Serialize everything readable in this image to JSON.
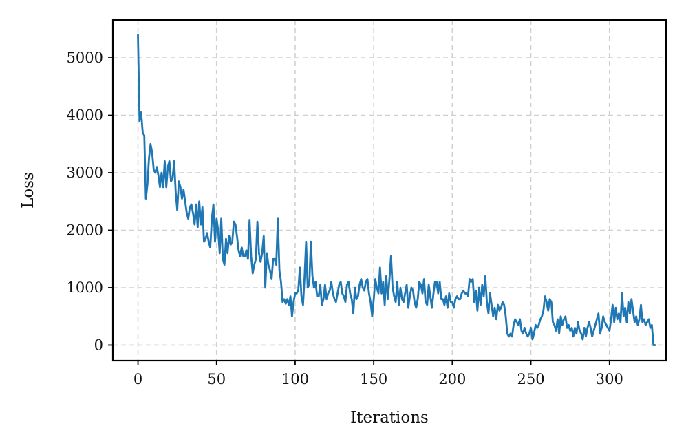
{
  "chart_data": {
    "type": "line",
    "title": "",
    "xlabel": "Iterations",
    "ylabel": "Loss",
    "xlim": [
      -16,
      336
    ],
    "ylim": [
      -270,
      5660
    ],
    "x_ticks": [
      0,
      50,
      100,
      150,
      200,
      250,
      300
    ],
    "y_ticks": [
      0,
      1000,
      2000,
      3000,
      4000,
      5000
    ],
    "x_tick_labels": [
      "0",
      "50",
      "100",
      "150",
      "200",
      "250",
      "300"
    ],
    "y_tick_labels": [
      "0",
      "1000",
      "2000",
      "3000",
      "4000",
      "5000"
    ],
    "grid": true,
    "legend": "none",
    "series": [
      {
        "color": "#1f77b4",
        "points": [
          [
            0,
            5400
          ],
          [
            1,
            3900
          ],
          [
            2,
            4050
          ],
          [
            3,
            3700
          ],
          [
            4,
            3650
          ],
          [
            5,
            2550
          ],
          [
            6,
            2800
          ],
          [
            7,
            3250
          ],
          [
            8,
            3500
          ],
          [
            9,
            3350
          ],
          [
            10,
            3050
          ],
          [
            11,
            3000
          ],
          [
            12,
            3100
          ],
          [
            13,
            2950
          ],
          [
            14,
            2750
          ],
          [
            15,
            3000
          ],
          [
            16,
            2750
          ],
          [
            17,
            3200
          ],
          [
            18,
            2750
          ],
          [
            19,
            3100
          ],
          [
            20,
            3200
          ],
          [
            21,
            2850
          ],
          [
            22,
            2900
          ],
          [
            23,
            3200
          ],
          [
            24,
            2650
          ],
          [
            25,
            2350
          ],
          [
            26,
            2850
          ],
          [
            27,
            2750
          ],
          [
            28,
            2550
          ],
          [
            29,
            2700
          ],
          [
            30,
            2500
          ],
          [
            31,
            2300
          ],
          [
            32,
            2200
          ],
          [
            33,
            2400
          ],
          [
            34,
            2450
          ],
          [
            35,
            2300
          ],
          [
            36,
            2100
          ],
          [
            37,
            2450
          ],
          [
            38,
            2050
          ],
          [
            39,
            2500
          ],
          [
            40,
            2100
          ],
          [
            41,
            2400
          ],
          [
            42,
            1800
          ],
          [
            43,
            1850
          ],
          [
            44,
            1950
          ],
          [
            45,
            1800
          ],
          [
            46,
            1700
          ],
          [
            47,
            2200
          ],
          [
            48,
            2450
          ],
          [
            49,
            1800
          ],
          [
            50,
            2200
          ],
          [
            51,
            2000
          ],
          [
            52,
            1600
          ],
          [
            53,
            2200
          ],
          [
            54,
            1500
          ],
          [
            55,
            1400
          ],
          [
            56,
            1850
          ],
          [
            57,
            1600
          ],
          [
            58,
            1900
          ],
          [
            59,
            1750
          ],
          [
            60,
            1800
          ],
          [
            61,
            2150
          ],
          [
            62,
            2100
          ],
          [
            63,
            1900
          ],
          [
            64,
            1650
          ],
          [
            65,
            1550
          ],
          [
            66,
            1700
          ],
          [
            67,
            1550
          ],
          [
            68,
            1550
          ],
          [
            69,
            1650
          ],
          [
            70,
            1500
          ],
          [
            71,
            2180
          ],
          [
            72,
            1550
          ],
          [
            73,
            1250
          ],
          [
            74,
            1400
          ],
          [
            75,
            1500
          ],
          [
            76,
            2150
          ],
          [
            77,
            1600
          ],
          [
            78,
            1450
          ],
          [
            79,
            1600
          ],
          [
            80,
            1900
          ],
          [
            81,
            1000
          ],
          [
            82,
            1600
          ],
          [
            83,
            1400
          ],
          [
            84,
            1300
          ],
          [
            85,
            1150
          ],
          [
            86,
            1500
          ],
          [
            87,
            1500
          ],
          [
            88,
            1400
          ],
          [
            89,
            2200
          ],
          [
            90,
            1300
          ],
          [
            91,
            1100
          ],
          [
            92,
            750
          ],
          [
            93,
            800
          ],
          [
            94,
            720
          ],
          [
            95,
            800
          ],
          [
            96,
            700
          ],
          [
            97,
            850
          ],
          [
            98,
            500
          ],
          [
            99,
            750
          ],
          [
            100,
            900
          ],
          [
            101,
            900
          ],
          [
            102,
            950
          ],
          [
            103,
            1350
          ],
          [
            104,
            850
          ],
          [
            105,
            700
          ],
          [
            106,
            1200
          ],
          [
            107,
            1800
          ],
          [
            108,
            1000
          ],
          [
            109,
            1050
          ],
          [
            110,
            1800
          ],
          [
            111,
            1200
          ],
          [
            112,
            1000
          ],
          [
            113,
            1100
          ],
          [
            114,
            850
          ],
          [
            115,
            850
          ],
          [
            116,
            1050
          ],
          [
            117,
            700
          ],
          [
            118,
            800
          ],
          [
            119,
            1050
          ],
          [
            120,
            800
          ],
          [
            121,
            900
          ],
          [
            122,
            950
          ],
          [
            123,
            1100
          ],
          [
            124,
            900
          ],
          [
            125,
            800
          ],
          [
            126,
            750
          ],
          [
            127,
            900
          ],
          [
            128,
            1050
          ],
          [
            129,
            1100
          ],
          [
            130,
            900
          ],
          [
            131,
            850
          ],
          [
            132,
            750
          ],
          [
            133,
            1050
          ],
          [
            134,
            1100
          ],
          [
            135,
            900
          ],
          [
            136,
            800
          ],
          [
            137,
            550
          ],
          [
            138,
            1000
          ],
          [
            139,
            800
          ],
          [
            140,
            850
          ],
          [
            141,
            1050
          ],
          [
            142,
            1150
          ],
          [
            143,
            1000
          ],
          [
            144,
            950
          ],
          [
            145,
            1100
          ],
          [
            146,
            1150
          ],
          [
            147,
            900
          ],
          [
            148,
            750
          ],
          [
            149,
            500
          ],
          [
            150,
            800
          ],
          [
            151,
            1150
          ],
          [
            152,
            1000
          ],
          [
            153,
            900
          ],
          [
            154,
            1350
          ],
          [
            155,
            900
          ],
          [
            156,
            1100
          ],
          [
            157,
            700
          ],
          [
            158,
            1200
          ],
          [
            159,
            800
          ],
          [
            160,
            1150
          ],
          [
            161,
            1550
          ],
          [
            162,
            1000
          ],
          [
            163,
            850
          ],
          [
            164,
            750
          ],
          [
            165,
            1100
          ],
          [
            166,
            700
          ],
          [
            167,
            1000
          ],
          [
            168,
            800
          ],
          [
            169,
            750
          ],
          [
            170,
            900
          ],
          [
            171,
            1050
          ],
          [
            172,
            650
          ],
          [
            173,
            850
          ],
          [
            174,
            1000
          ],
          [
            175,
            950
          ],
          [
            176,
            750
          ],
          [
            177,
            650
          ],
          [
            178,
            800
          ],
          [
            179,
            1100
          ],
          [
            180,
            1050
          ],
          [
            181,
            900
          ],
          [
            182,
            1150
          ],
          [
            183,
            750
          ],
          [
            184,
            700
          ],
          [
            185,
            1050
          ],
          [
            186,
            850
          ],
          [
            187,
            650
          ],
          [
            188,
            900
          ],
          [
            189,
            1100
          ],
          [
            190,
            1100
          ],
          [
            191,
            900
          ],
          [
            192,
            1100
          ],
          [
            193,
            800
          ],
          [
            194,
            800
          ],
          [
            195,
            700
          ],
          [
            196,
            850
          ],
          [
            197,
            650
          ],
          [
            198,
            900
          ],
          [
            199,
            750
          ],
          [
            200,
            750
          ],
          [
            201,
            650
          ],
          [
            202,
            800
          ],
          [
            203,
            850
          ],
          [
            204,
            800
          ],
          [
            205,
            800
          ],
          [
            206,
            900
          ],
          [
            207,
            950
          ],
          [
            208,
            900
          ],
          [
            209,
            900
          ],
          [
            210,
            850
          ],
          [
            211,
            1150
          ],
          [
            212,
            1100
          ],
          [
            213,
            1150
          ],
          [
            214,
            750
          ],
          [
            215,
            950
          ],
          [
            216,
            600
          ],
          [
            217,
            1000
          ],
          [
            218,
            700
          ],
          [
            219,
            1050
          ],
          [
            220,
            850
          ],
          [
            221,
            1200
          ],
          [
            222,
            750
          ],
          [
            223,
            550
          ],
          [
            224,
            900
          ],
          [
            225,
            700
          ],
          [
            226,
            500
          ],
          [
            227,
            650
          ],
          [
            228,
            450
          ],
          [
            229,
            700
          ],
          [
            230,
            600
          ],
          [
            231,
            650
          ],
          [
            232,
            750
          ],
          [
            233,
            700
          ],
          [
            234,
            500
          ],
          [
            235,
            200
          ],
          [
            236,
            150
          ],
          [
            237,
            200
          ],
          [
            238,
            150
          ],
          [
            239,
            350
          ],
          [
            240,
            450
          ],
          [
            241,
            400
          ],
          [
            242,
            350
          ],
          [
            243,
            450
          ],
          [
            244,
            250
          ],
          [
            245,
            200
          ],
          [
            246,
            300
          ],
          [
            247,
            200
          ],
          [
            248,
            150
          ],
          [
            249,
            200
          ],
          [
            250,
            300
          ],
          [
            251,
            100
          ],
          [
            252,
            200
          ],
          [
            253,
            350
          ],
          [
            254,
            300
          ],
          [
            255,
            350
          ],
          [
            256,
            450
          ],
          [
            257,
            500
          ],
          [
            258,
            600
          ],
          [
            259,
            850
          ],
          [
            260,
            750
          ],
          [
            261,
            600
          ],
          [
            262,
            800
          ],
          [
            263,
            750
          ],
          [
            264,
            400
          ],
          [
            265,
            350
          ],
          [
            266,
            250
          ],
          [
            267,
            450
          ],
          [
            268,
            200
          ],
          [
            269,
            500
          ],
          [
            270,
            350
          ],
          [
            271,
            450
          ],
          [
            272,
            500
          ],
          [
            273,
            300
          ],
          [
            274,
            350
          ],
          [
            275,
            250
          ],
          [
            276,
            300
          ],
          [
            277,
            150
          ],
          [
            278,
            300
          ],
          [
            279,
            200
          ],
          [
            280,
            400
          ],
          [
            281,
            250
          ],
          [
            282,
            200
          ],
          [
            283,
            100
          ],
          [
            284,
            300
          ],
          [
            285,
            150
          ],
          [
            286,
            300
          ],
          [
            287,
            400
          ],
          [
            288,
            300
          ],
          [
            289,
            150
          ],
          [
            290,
            250
          ],
          [
            291,
            350
          ],
          [
            292,
            450
          ],
          [
            293,
            550
          ],
          [
            294,
            200
          ],
          [
            295,
            300
          ],
          [
            296,
            500
          ],
          [
            297,
            400
          ],
          [
            298,
            350
          ],
          [
            299,
            300
          ],
          [
            300,
            250
          ],
          [
            301,
            450
          ],
          [
            302,
            700
          ],
          [
            303,
            400
          ],
          [
            304,
            650
          ],
          [
            305,
            450
          ],
          [
            306,
            550
          ],
          [
            307,
            400
          ],
          [
            308,
            900
          ],
          [
            309,
            500
          ],
          [
            310,
            650
          ],
          [
            311,
            400
          ],
          [
            312,
            750
          ],
          [
            313,
            550
          ],
          [
            314,
            800
          ],
          [
            315,
            600
          ],
          [
            316,
            400
          ],
          [
            317,
            500
          ],
          [
            318,
            350
          ],
          [
            319,
            450
          ],
          [
            320,
            700
          ],
          [
            321,
            400
          ],
          [
            322,
            450
          ],
          [
            323,
            350
          ],
          [
            324,
            400
          ],
          [
            325,
            450
          ],
          [
            326,
            300
          ],
          [
            327,
            350
          ],
          [
            328,
            0
          ],
          [
            329,
            0
          ]
        ]
      }
    ]
  }
}
